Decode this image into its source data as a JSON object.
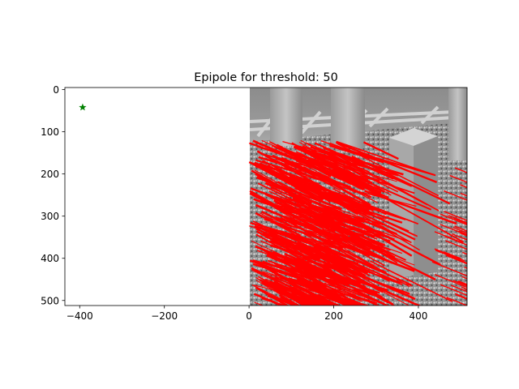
{
  "chart_data": {
    "type": "scatter",
    "title": "Epipole for threshold: 50",
    "xlabel": "",
    "ylabel": "",
    "xlim": [
      -435,
      515
    ],
    "ylim": [
      512,
      -5
    ],
    "y_inverted": true,
    "x_ticks": [
      -400,
      -200,
      0,
      200,
      400
    ],
    "y_ticks": [
      0,
      100,
      200,
      300,
      400,
      500
    ],
    "x_tick_labels": [
      "−400",
      "−200",
      "0",
      "200",
      "400"
    ],
    "y_tick_labels": [
      "0",
      "100",
      "200",
      "300",
      "400",
      "500"
    ],
    "grid": false,
    "image_extent": {
      "x": [
        0,
        512
      ],
      "y": [
        0,
        512
      ]
    },
    "image_description": "grayscale rendered scene of stone pillars on a textured floor",
    "epipole": {
      "x": -393,
      "y": 42,
      "marker": "star",
      "color": "#008000"
    },
    "flow_vector_color": "#ff0000"
  }
}
